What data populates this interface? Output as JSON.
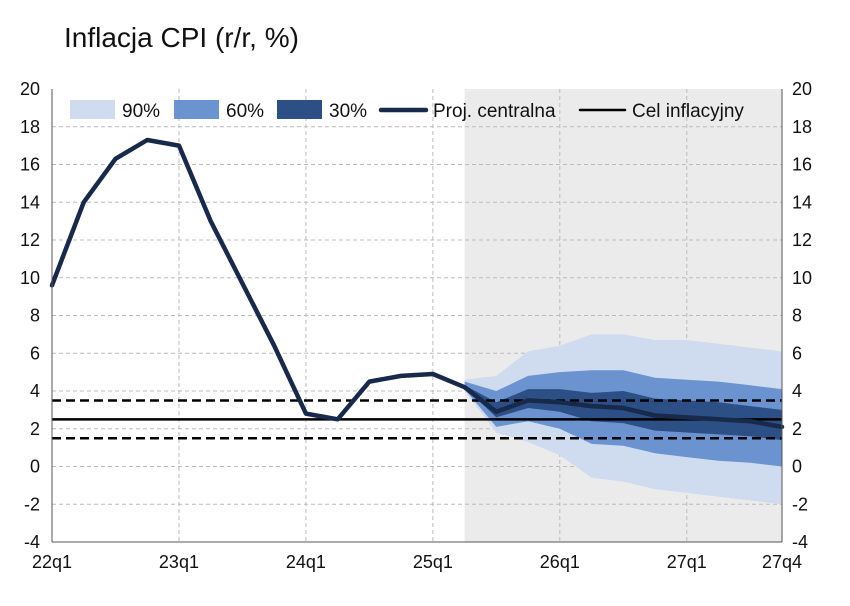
{
  "chart_data": {
    "type": "area",
    "title": "Inflacja CPI (r/r, %)",
    "xlabel": "",
    "ylabel": "",
    "ylim": [
      -4,
      20
    ],
    "yticks": [
      -4,
      -2,
      0,
      2,
      4,
      6,
      8,
      10,
      12,
      14,
      16,
      18,
      20
    ],
    "x": [
      "22q1",
      "22q2",
      "22q3",
      "22q4",
      "23q1",
      "23q2",
      "23q3",
      "23q4",
      "24q1",
      "24q2",
      "24q3",
      "24q4",
      "25q1",
      "25q2",
      "25q3",
      "25q4",
      "26q1",
      "26q2",
      "26q3",
      "26q4",
      "27q1",
      "27q2",
      "27q3",
      "27q4"
    ],
    "xtick_labels": [
      "22q1",
      "23q1",
      "24q1",
      "25q1",
      "26q1",
      "27q1",
      "27q4"
    ],
    "grid": true,
    "projection_shading_start": "25q2",
    "legend": {
      "placement": "top",
      "entries": [
        "90%",
        "60%",
        "30%",
        "Proj. centralna",
        "Cel inflacyjny"
      ]
    },
    "colors": {
      "band_90": "#cfdbee",
      "band_60": "#6a93cf",
      "band_30": "#2c4f86",
      "central": "#172a4c",
      "target": "#000000",
      "projection_bg": "#ebebeb",
      "grid": "#bcbcbc"
    },
    "series": [
      {
        "name": "Proj. centralna",
        "values": [
          9.6,
          14.0,
          16.3,
          17.3,
          17.0,
          13.0,
          9.7,
          6.4,
          2.8,
          2.5,
          4.5,
          4.8,
          4.9,
          4.2,
          2.9,
          3.5,
          3.4,
          3.2,
          3.1,
          2.7,
          2.6,
          2.5,
          2.4,
          2.1
        ]
      },
      {
        "name": "Cel inflacyjny",
        "values": [
          2.5,
          2.5,
          2.5,
          2.5,
          2.5,
          2.5,
          2.5,
          2.5,
          2.5,
          2.5,
          2.5,
          2.5,
          2.5,
          2.5,
          2.5,
          2.5,
          2.5,
          2.5,
          2.5,
          2.5,
          2.5,
          2.5,
          2.5,
          2.5
        ],
        "tolerance_upper": 3.5,
        "tolerance_lower": 1.5
      }
    ],
    "bands": [
      {
        "name": "90%",
        "x": [
          "25q2",
          "25q3",
          "25q4",
          "26q1",
          "26q2",
          "26q3",
          "26q4",
          "27q1",
          "27q2",
          "27q3",
          "27q4"
        ],
        "lower": [
          4.0,
          1.8,
          1.3,
          0.6,
          -0.6,
          -0.8,
          -1.2,
          -1.4,
          -1.6,
          -1.8,
          -2.0
        ],
        "upper": [
          4.6,
          4.8,
          6.1,
          6.4,
          7.0,
          7.0,
          6.7,
          6.7,
          6.5,
          6.3,
          6.1
        ]
      },
      {
        "name": "60%",
        "x": [
          "25q2",
          "25q3",
          "25q4",
          "26q1",
          "26q2",
          "26q3",
          "26q4",
          "27q1",
          "27q2",
          "27q3",
          "27q4"
        ],
        "lower": [
          4.1,
          2.1,
          2.4,
          2.0,
          1.2,
          1.1,
          0.7,
          0.5,
          0.3,
          0.2,
          0.0
        ],
        "upper": [
          4.5,
          4.0,
          4.8,
          5.0,
          5.1,
          5.1,
          4.7,
          4.6,
          4.5,
          4.3,
          4.1
        ]
      },
      {
        "name": "30%",
        "x": [
          "25q2",
          "25q3",
          "25q4",
          "26q1",
          "26q2",
          "26q3",
          "26q4",
          "27q1",
          "27q2",
          "27q3",
          "27q4"
        ],
        "lower": [
          4.2,
          2.6,
          3.1,
          2.9,
          2.4,
          2.3,
          1.9,
          1.8,
          1.7,
          1.6,
          1.4
        ],
        "upper": [
          4.3,
          3.4,
          4.1,
          4.1,
          3.9,
          4.0,
          3.6,
          3.5,
          3.4,
          3.2,
          3.0
        ]
      }
    ]
  }
}
